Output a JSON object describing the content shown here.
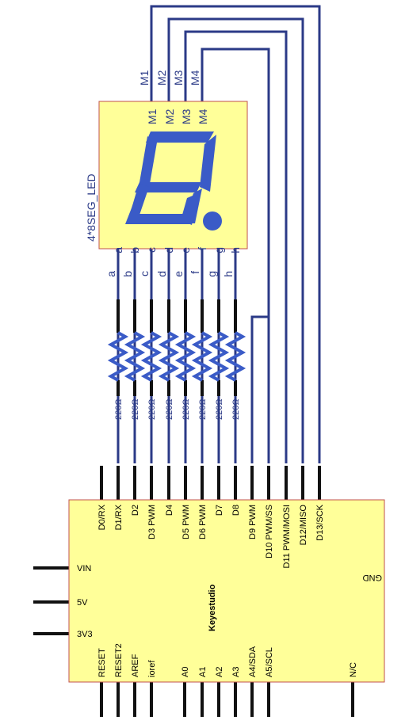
{
  "colors": {
    "wire_blue": "#2b3a87",
    "pin_black": "#111111",
    "board_fill": "#ffff99",
    "board_stroke": "#c0504d",
    "segment_fill": "#3a5bc7"
  },
  "display": {
    "name": "4*8SEG_LED",
    "top_pins": [
      "M1",
      "M2",
      "M3",
      "M4"
    ],
    "bottom_pins": [
      "a",
      "b",
      "c",
      "d",
      "e",
      "f",
      "g",
      "h"
    ],
    "external_labels": [
      "M1",
      "M2",
      "M3",
      "M4"
    ]
  },
  "resistors": {
    "labels": [
      "220Ω",
      "220Ω",
      "220Ω",
      "220Ω",
      "220Ω",
      "220Ω",
      "220Ω",
      "220Ω"
    ]
  },
  "board": {
    "name": "Keyestudio",
    "top_pins": [
      "D0/RX",
      "D1/RX",
      "D2",
      "D3 PWM",
      "D4",
      "D5 PWM",
      "D6 PWM",
      "D7",
      "D8",
      "D9 PWM",
      "D10 PWM/SS",
      "D11 PWM/MOSI",
      "D12/MISO",
      "D13/SCK"
    ],
    "left_pins": [
      "VIN",
      "5V",
      "3V3"
    ],
    "right_pins": [
      "GND"
    ],
    "bottom_pins": [
      "RESET",
      "RESET2",
      "AREF",
      "ioref",
      "A0",
      "A1",
      "A2",
      "A3",
      "A4/SDA",
      "A5/SCL",
      "N/C"
    ]
  }
}
